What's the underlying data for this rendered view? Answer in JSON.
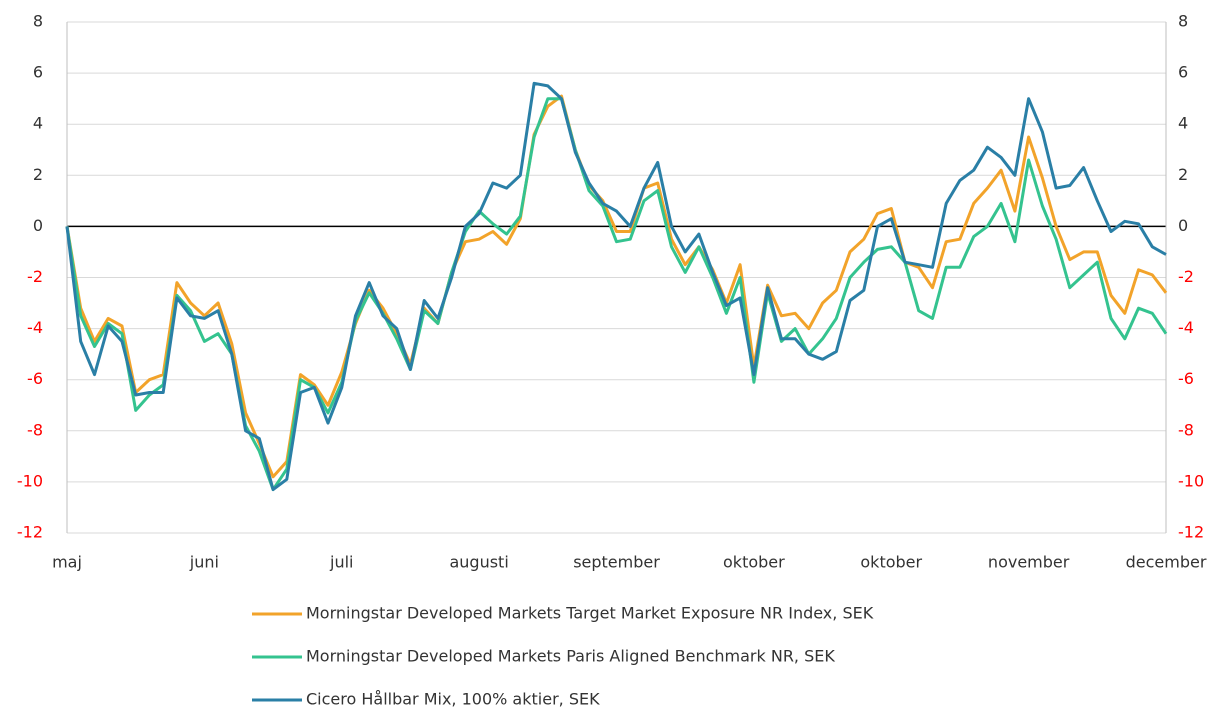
{
  "chart_data": {
    "type": "line",
    "categories": [
      "maj",
      null,
      null,
      null,
      null,
      null,
      null,
      null,
      null,
      null,
      "juni",
      null,
      null,
      null,
      null,
      null,
      null,
      null,
      null,
      null,
      "juli",
      null,
      null,
      null,
      null,
      null,
      null,
      null,
      null,
      null,
      "augusti",
      null,
      null,
      null,
      null,
      null,
      null,
      null,
      null,
      null,
      "september",
      null,
      null,
      null,
      null,
      null,
      null,
      null,
      null,
      null,
      "oktober",
      null,
      null,
      null,
      null,
      null,
      null,
      null,
      null,
      null,
      "oktober",
      null,
      null,
      null,
      null,
      null,
      null,
      null,
      null,
      null,
      "november",
      null,
      null,
      null,
      null,
      null,
      null,
      null,
      null,
      null,
      "december"
    ],
    "series": [
      {
        "name": "Morningstar Developed Markets Target Market Exposure NR Index, SEK",
        "color": "#f2a32a",
        "values": [
          0,
          -3.2,
          -4.5,
          -3.6,
          -3.9,
          -6.5,
          -6.0,
          -5.8,
          -2.2,
          -3.0,
          -3.5,
          -3.0,
          -4.6,
          -7.3,
          -8.5,
          -9.8,
          -9.2,
          -5.8,
          -6.2,
          -7.0,
          -5.7,
          -3.8,
          -2.5,
          -3.2,
          -4.2,
          -5.4,
          -3.2,
          -3.8,
          -1.8,
          -0.6,
          -0.5,
          -0.2,
          -0.7,
          0.3,
          3.6,
          4.7,
          5.1,
          3.0,
          1.6,
          1.0,
          -0.2,
          -0.2,
          1.5,
          1.7,
          -0.5,
          -1.5,
          -0.8,
          -1.7,
          -3.0,
          -1.5,
          -5.5,
          -2.3,
          -3.5,
          -3.4,
          -4.0,
          -3.0,
          -2.5,
          -1.0,
          -0.5,
          0.5,
          0.7,
          -1.4,
          -1.6,
          -2.4,
          -0.6,
          -0.5,
          0.9,
          1.5,
          2.2,
          0.6,
          3.5,
          1.9,
          0.0,
          -1.3,
          -1.0,
          -1.0,
          -2.7,
          -3.4,
          -1.7,
          -1.9,
          -2.6
        ]
      },
      {
        "name": "Morningstar Developed Markets Paris Aligned Benchmark NR, SEK",
        "color": "#34c38f",
        "values": [
          0,
          -3.5,
          -4.7,
          -3.8,
          -4.2,
          -7.2,
          -6.6,
          -6.2,
          -2.7,
          -3.3,
          -4.5,
          -4.2,
          -5.0,
          -7.8,
          -8.8,
          -10.3,
          -9.5,
          -6.0,
          -6.3,
          -7.3,
          -6.1,
          -3.7,
          -2.6,
          -3.4,
          -4.4,
          -5.6,
          -3.3,
          -3.8,
          -1.8,
          -0.2,
          0.6,
          0.1,
          -0.3,
          0.4,
          3.5,
          5.0,
          5.0,
          3.0,
          1.4,
          0.8,
          -0.6,
          -0.5,
          1.0,
          1.4,
          -0.8,
          -1.8,
          -0.8,
          -2.0,
          -3.4,
          -2.0,
          -6.1,
          -2.6,
          -4.5,
          -4.0,
          -5.0,
          -4.4,
          -3.6,
          -2.0,
          -1.4,
          -0.9,
          -0.8,
          -1.4,
          -3.3,
          -3.6,
          -1.6,
          -1.6,
          -0.4,
          0.0,
          0.9,
          -0.6,
          2.6,
          0.8,
          -0.5,
          -2.4,
          -1.9,
          -1.4,
          -3.6,
          -4.4,
          -3.2,
          -3.4,
          -4.2
        ]
      },
      {
        "name": "Cicero Hållbar Mix, 100% aktier, SEK",
        "color": "#2a7fa6",
        "values": [
          0,
          -4.5,
          -5.8,
          -3.9,
          -4.5,
          -6.6,
          -6.5,
          -6.5,
          -2.8,
          -3.5,
          -3.6,
          -3.3,
          -5.0,
          -8.0,
          -8.3,
          -10.3,
          -9.9,
          -6.5,
          -6.3,
          -7.7,
          -6.3,
          -3.5,
          -2.2,
          -3.5,
          -4.0,
          -5.6,
          -2.9,
          -3.6,
          -2.0,
          0.0,
          0.5,
          1.7,
          1.5,
          2.0,
          5.6,
          5.5,
          5.0,
          2.9,
          1.7,
          0.9,
          0.6,
          0.0,
          1.5,
          2.5,
          0.0,
          -1.0,
          -0.3,
          -1.8,
          -3.1,
          -2.8,
          -5.8,
          -2.4,
          -4.4,
          -4.4,
          -5.0,
          -5.2,
          -4.9,
          -2.9,
          -2.5,
          0.0,
          0.3,
          -1.4,
          -1.5,
          -1.6,
          0.9,
          1.8,
          2.2,
          3.1,
          2.7,
          2.0,
          5.0,
          3.7,
          1.5,
          1.6,
          2.3,
          1.0,
          -0.2,
          0.2,
          0.1,
          -0.8,
          -1.1
        ]
      }
    ],
    "ylim": [
      -12,
      8
    ],
    "yticks": [
      -12,
      -10,
      -8,
      -6,
      -4,
      -2,
      0,
      2,
      4,
      6,
      8
    ],
    "grid": true,
    "negative_tick_color": "#ff0000",
    "right_axis_ticks": true,
    "legend": "bottom"
  }
}
